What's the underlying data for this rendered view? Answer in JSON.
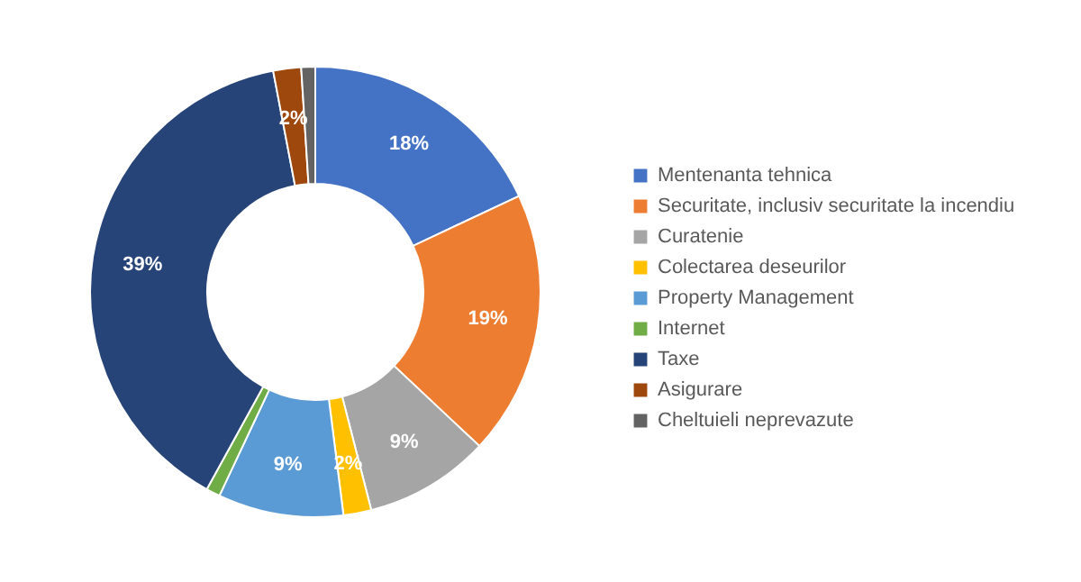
{
  "chart_data": {
    "type": "donut",
    "categories": [
      "Mentenanta tehnica",
      "Securitate, inclusiv securitate la incendiu",
      "Curatenie",
      "Colectarea deseurilor",
      "Property Management",
      "Internet",
      "Taxe",
      "Asigurare",
      "Cheltuieli neprevazute"
    ],
    "values": [
      18,
      19,
      9,
      2,
      9,
      1,
      39,
      2,
      1
    ],
    "colors": [
      "#4472c4",
      "#ed7d31",
      "#a5a5a5",
      "#ffc000",
      "#5b9bd5",
      "#70ad47",
      "#264478",
      "#9e480e",
      "#636363"
    ],
    "value_labels": [
      "18%",
      "19%",
      "9%",
      "2%",
      "9%",
      null,
      "39%",
      "2%",
      null
    ],
    "legend": "right"
  }
}
